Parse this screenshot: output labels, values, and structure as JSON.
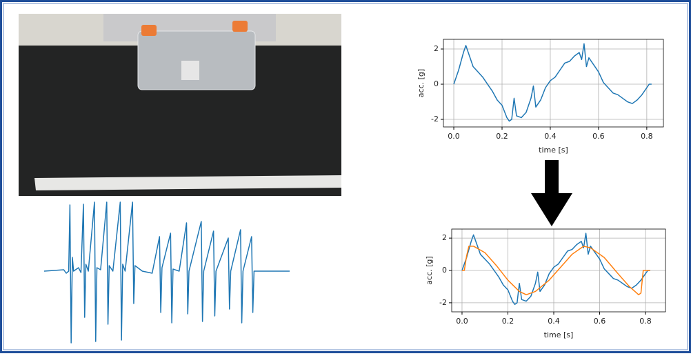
{
  "chart_data": [
    {
      "type": "line",
      "x": [
        0,
        8,
        9,
        10,
        10.5,
        11,
        11.5,
        12,
        14,
        15,
        16,
        16.5,
        17,
        18,
        20.5,
        21,
        21.5,
        23,
        25.5,
        26,
        26.5,
        28,
        31,
        31.5,
        32,
        33,
        36,
        36.5,
        37,
        40,
        44,
        47,
        47.5,
        48,
        51.5,
        52,
        52.5,
        55,
        58,
        58.5,
        59,
        64,
        64.5,
        65,
        69,
        69.5,
        70,
        75,
        75.5,
        76,
        80,
        80.5,
        81,
        84.5,
        85,
        85.5,
        92,
        100
      ],
      "xlim": [
        0,
        100
      ],
      "ylim": [
        -104,
        100
      ],
      "series": [
        {
          "color": "#1f77b4",
          "values": [
            0,
            2,
            -3,
            0,
            96,
            -104,
            20,
            0,
            5,
            -2,
            97,
            -67,
            10,
            0,
            100,
            -102,
            5,
            2,
            100,
            -77,
            8,
            0,
            100,
            -100,
            10,
            0,
            100,
            -47,
            8,
            0,
            -3,
            50,
            -60,
            5,
            55,
            -75,
            3,
            0,
            70,
            -62,
            0,
            72,
            -73,
            0,
            58,
            -65,
            0,
            48,
            -55,
            0,
            60,
            -75,
            0,
            50,
            -60,
            0,
            0,
            0
          ]
        }
      ]
    },
    {
      "type": "line",
      "xlabel": "time [s]",
      "ylabel": "acc. [g]",
      "grid": true,
      "xlim": [
        -0.043,
        0.869
      ],
      "ylim": [
        -2.43,
        2.55
      ],
      "xticks": [
        {
          "value": 0,
          "label": "0.0"
        },
        {
          "value": 0.2,
          "label": "0.2"
        },
        {
          "value": 0.4,
          "label": "0.4"
        },
        {
          "value": 0.6,
          "label": "0.6"
        },
        {
          "value": 0.8,
          "label": "0.8"
        }
      ],
      "yticks": [
        -2,
        0,
        2
      ],
      "x": [
        0,
        0.02,
        0.04,
        0.05,
        0.06,
        0.08,
        0.1,
        0.12,
        0.14,
        0.16,
        0.18,
        0.2,
        0.22,
        0.23,
        0.24,
        0.25,
        0.26,
        0.28,
        0.3,
        0.32,
        0.33,
        0.34,
        0.36,
        0.38,
        0.4,
        0.42,
        0.44,
        0.46,
        0.48,
        0.5,
        0.52,
        0.53,
        0.54,
        0.55,
        0.56,
        0.58,
        0.6,
        0.62,
        0.64,
        0.66,
        0.68,
        0.7,
        0.72,
        0.74,
        0.76,
        0.78,
        0.8,
        0.81,
        0.82
      ],
      "series": [
        {
          "color": "#1f77b4",
          "values": [
            0,
            0.8,
            1.8,
            2.2,
            1.8,
            1.0,
            0.7,
            0.4,
            0.0,
            -0.4,
            -0.9,
            -1.2,
            -1.9,
            -2.1,
            -2.0,
            -0.8,
            -1.8,
            -1.9,
            -1.6,
            -0.8,
            -0.1,
            -1.3,
            -0.9,
            -0.2,
            0.2,
            0.4,
            0.8,
            1.2,
            1.3,
            1.6,
            1.8,
            1.4,
            2.3,
            1.0,
            1.5,
            1.1,
            0.7,
            0.1,
            -0.2,
            -0.5,
            -0.6,
            -0.8,
            -1.0,
            -1.1,
            -0.9,
            -0.6,
            -0.2,
            0.0,
            0.0
          ]
        }
      ]
    },
    {
      "type": "line",
      "xlabel": "time [s]",
      "ylabel": "acc. [g]",
      "grid": true,
      "xlim": [
        -0.045,
        0.887
      ],
      "ylim": [
        -2.56,
        2.56
      ],
      "xticks": [
        {
          "value": 0,
          "label": "0.0"
        },
        {
          "value": 0.2,
          "label": "0.2"
        },
        {
          "value": 0.4,
          "label": "0.4"
        },
        {
          "value": 0.6,
          "label": "0.6"
        },
        {
          "value": 0.8,
          "label": "0.8"
        }
      ],
      "yticks": [
        -2,
        0,
        2
      ],
      "x": [
        0,
        0.02,
        0.04,
        0.05,
        0.06,
        0.08,
        0.1,
        0.12,
        0.14,
        0.16,
        0.18,
        0.2,
        0.22,
        0.23,
        0.24,
        0.25,
        0.26,
        0.28,
        0.3,
        0.32,
        0.33,
        0.34,
        0.36,
        0.38,
        0.4,
        0.42,
        0.44,
        0.46,
        0.48,
        0.5,
        0.52,
        0.53,
        0.54,
        0.55,
        0.56,
        0.58,
        0.6,
        0.62,
        0.64,
        0.66,
        0.68,
        0.7,
        0.72,
        0.74,
        0.76,
        0.78,
        0.8,
        0.81,
        0.82
      ],
      "series": [
        {
          "color": "#1f77b4",
          "values": [
            0,
            0.8,
            1.8,
            2.2,
            1.8,
            1.0,
            0.7,
            0.4,
            0.0,
            -0.4,
            -0.9,
            -1.2,
            -1.9,
            -2.1,
            -2.0,
            -0.8,
            -1.8,
            -1.9,
            -1.6,
            -0.8,
            -0.1,
            -1.3,
            -0.9,
            -0.2,
            0.2,
            0.4,
            0.8,
            1.2,
            1.3,
            1.6,
            1.8,
            1.4,
            2.3,
            1.0,
            1.5,
            1.1,
            0.7,
            0.1,
            -0.2,
            -0.5,
            -0.6,
            -0.8,
            -1.0,
            -1.1,
            -0.9,
            -0.6,
            -0.2,
            0.0,
            0.0
          ]
        }
      ],
      "fit": {
        "color": "#ff7f0e",
        "x": [
          0,
          0.01,
          0.02,
          0.03,
          0.05,
          0.1,
          0.15,
          0.2,
          0.25,
          0.28,
          0.32,
          0.38,
          0.43,
          0.48,
          0.53,
          0.56,
          0.62,
          0.68,
          0.73,
          0.77,
          0.78,
          0.79,
          0.82
        ],
        "values": [
          0,
          0,
          0.9,
          1.5,
          1.5,
          1.1,
          0.3,
          -0.6,
          -1.3,
          -1.5,
          -1.3,
          -0.6,
          0.2,
          1.0,
          1.5,
          1.4,
          0.8,
          -0.2,
          -1.0,
          -1.5,
          -1.4,
          0,
          0
        ]
      }
    }
  ]
}
